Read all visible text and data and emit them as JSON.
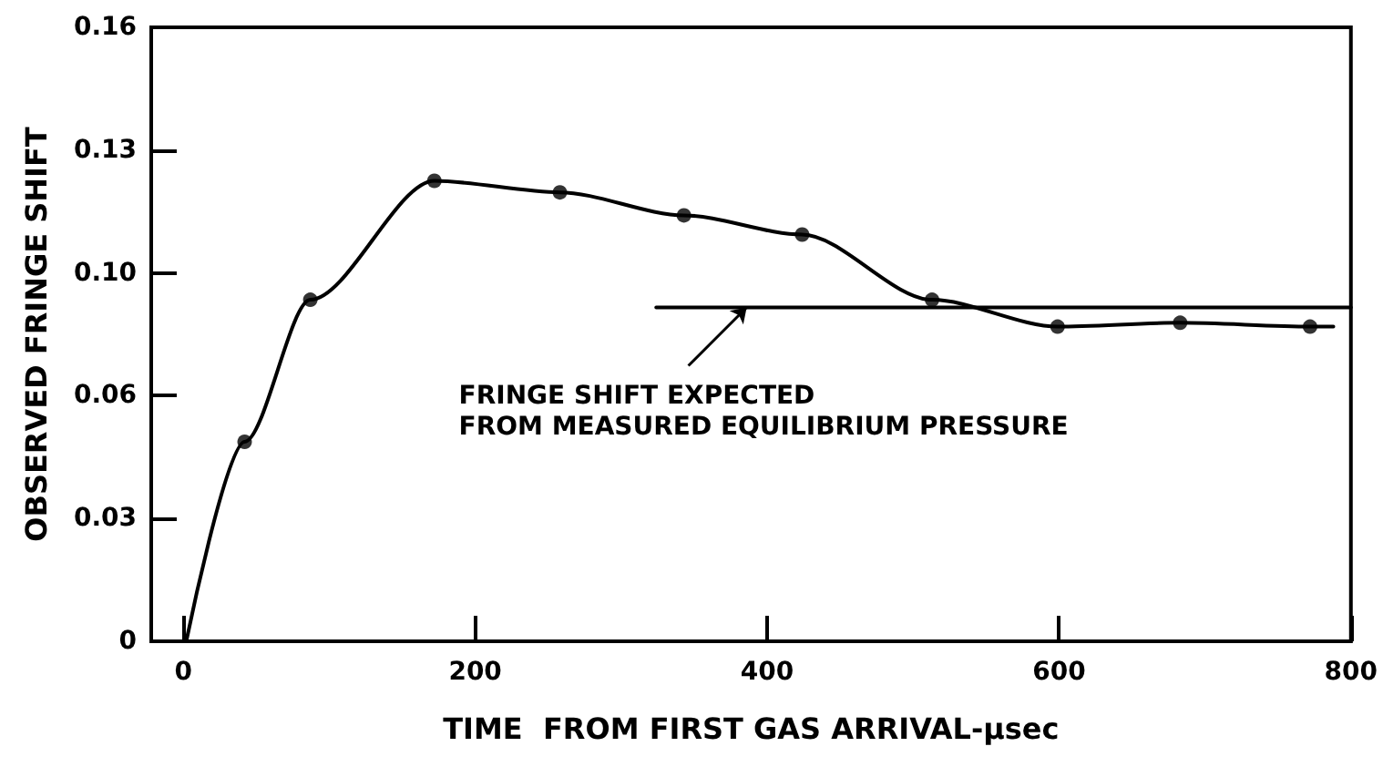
{
  "chart_data": {
    "type": "scatter",
    "xlabel": "TIME  FROM FIRST GAS ARRIVAL-μsec",
    "ylabel": "OBSERVED FRINGE SHIFT",
    "xlim": [
      -22,
      800
    ],
    "xticks": [
      0,
      200,
      400,
      600,
      800
    ],
    "ylim": [
      0,
      0.16
    ],
    "yticks": [
      0,
      {
        "value": 0.032,
        "label": "0.03"
      },
      {
        "value": 0.064,
        "label": "0.06"
      },
      {
        "value": 0.096,
        "label": "0.10"
      },
      {
        "value": 0.128,
        "label": "0.13"
      },
      {
        "value": 0.16,
        "label": "0.16"
      }
    ],
    "grid": false,
    "series": [
      {
        "type": "line",
        "color": "#000000",
        "marker": "none",
        "x": [
          2,
          42,
          87,
          172,
          258,
          343,
          424,
          513,
          599,
          683,
          772,
          788
        ],
        "values": [
          0,
          0.052,
          0.089,
          0.12,
          0.117,
          0.111,
          0.106,
          0.089,
          0.082,
          0.083,
          0.082,
          0.082
        ]
      },
      {
        "color": "#000000",
        "marker": "circle",
        "x": [
          42,
          87,
          172,
          258,
          343,
          424,
          513,
          599,
          683,
          772
        ],
        "values": [
          0.052,
          0.089,
          0.12,
          0.117,
          0.111,
          0.106,
          0.089,
          0.082,
          0.083,
          0.082
        ]
      },
      {
        "type": "line",
        "color": "#000000",
        "marker": "none",
        "x": [
          324,
          800
        ],
        "values": [
          0.087,
          0.087
        ]
      }
    ],
    "annotations": [
      {
        "text": "FRINGE SHIFT EXPECTED\nFROM MEASURED EQUILIBRIUM PRESSURE",
        "x": 386,
        "y": 0.087
      }
    ]
  }
}
